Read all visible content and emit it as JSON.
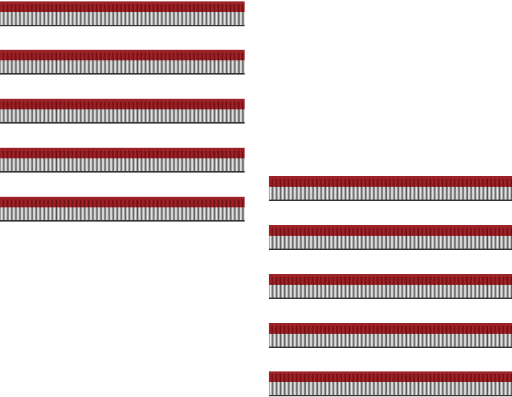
{
  "image": {
    "subject": "wire-end-ferrule-strips",
    "colors": {
      "insulation": "#8a1a1e",
      "sleeve": "#cfcfcf"
    },
    "strip_count": 10
  }
}
